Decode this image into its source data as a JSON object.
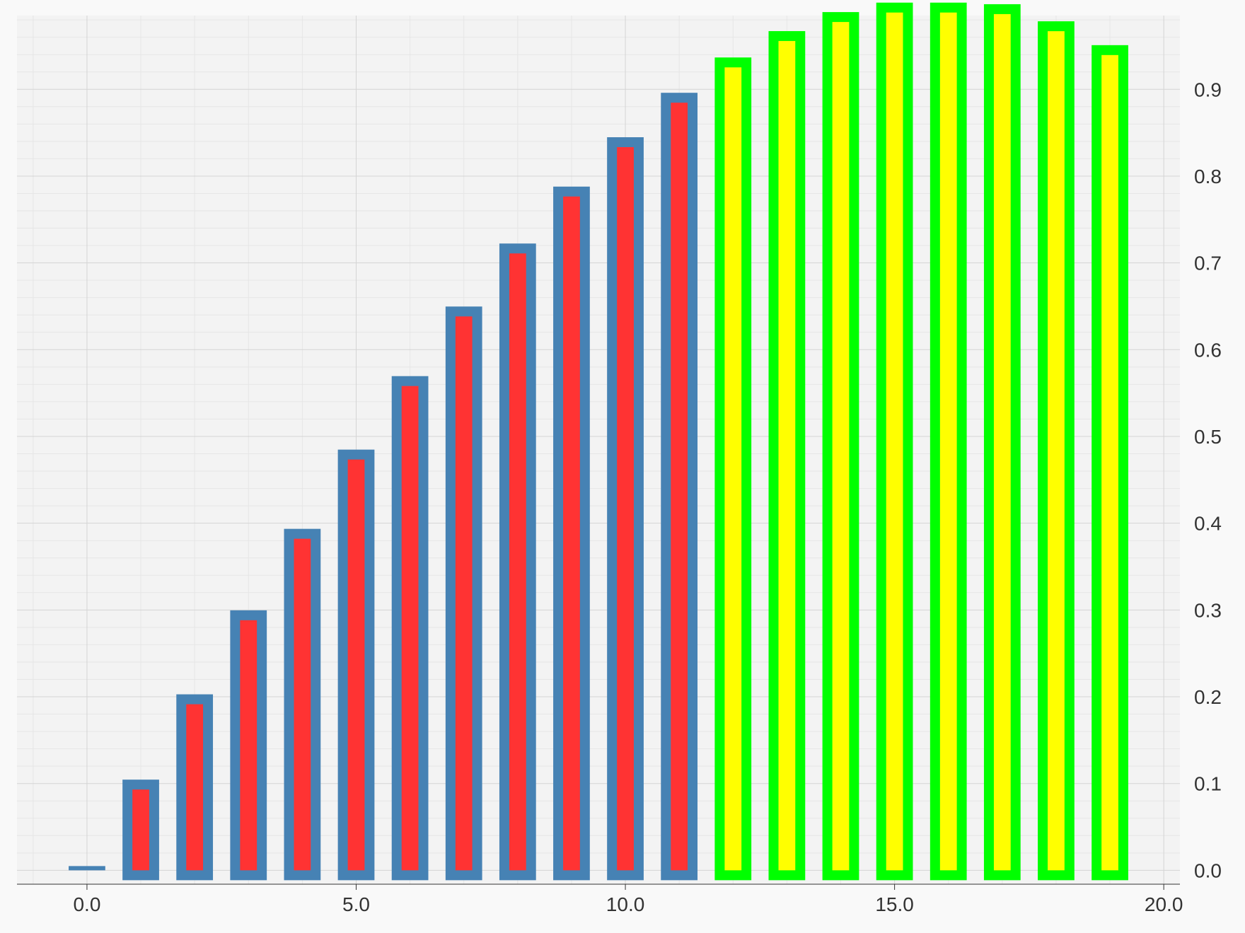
{
  "chart_data": {
    "type": "bar",
    "x": [
      0,
      1,
      2,
      3,
      4,
      5,
      6,
      7,
      8,
      9,
      10,
      11,
      12,
      13,
      14,
      15,
      16,
      17,
      18,
      19
    ],
    "values": [
      0.0,
      0.1045,
      0.2028,
      0.2996,
      0.3935,
      0.4848,
      0.5695,
      0.6497,
      0.7223,
      0.7879,
      0.8448,
      0.896,
      0.9367,
      0.9671,
      0.989,
      0.9999,
      0.9999,
      0.9981,
      0.9784,
      0.9509
    ],
    "highlight_from_x": 12,
    "xlim": [
      -1.3,
      20.3
    ],
    "ylim": [
      -0.016,
      0.985
    ],
    "x_ticks": [
      0,
      5,
      10,
      15,
      20
    ],
    "x_tick_labels": [
      "0.0",
      "5.0",
      "10.0",
      "15.0",
      "20.0"
    ],
    "y_ticks": [
      0.0,
      0.1,
      0.2,
      0.3,
      0.4,
      0.5,
      0.6,
      0.7,
      0.8,
      0.9
    ],
    "y_tick_labels": [
      "0.0",
      "0.1",
      "0.2",
      "0.3",
      "0.4",
      "0.5",
      "0.6",
      "0.7",
      "0.8",
      "0.9"
    ],
    "y_axis_position": "right",
    "grid": true,
    "title": "",
    "xlabel": "",
    "ylabel": "",
    "colors": {
      "background": "#f9f9f9",
      "plot_background": "#f3f3f3",
      "grid_major": "#d4d4d4",
      "grid_minor": "#e6e6e6",
      "bar_fill": "#ff3333",
      "bar_stroke": "#4682b4",
      "highlight_fill": "#ffff00",
      "highlight_stroke": "#00ff00"
    }
  }
}
